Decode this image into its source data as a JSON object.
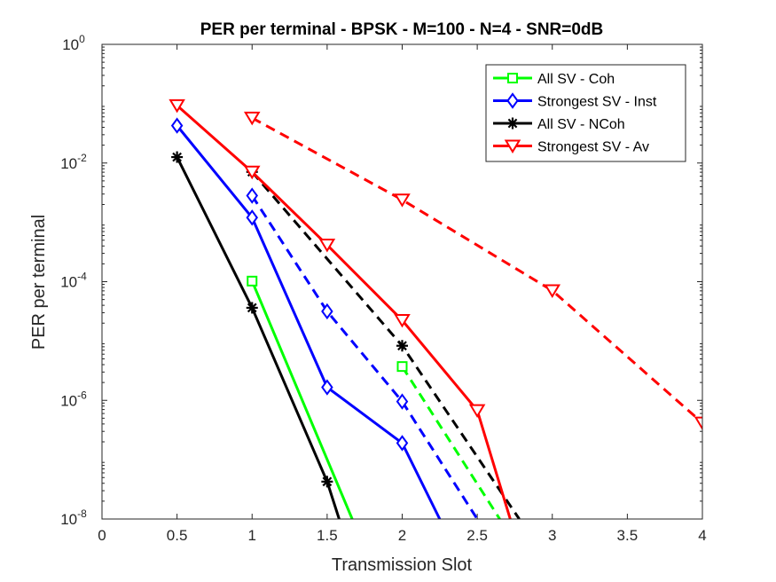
{
  "chart_data": {
    "type": "line",
    "title": "PER per terminal - BPSK - M=100 -  N=4 - SNR=0dB",
    "xlabel": "Transmission Slot",
    "ylabel": "PER per terminal",
    "xlim": [
      0,
      4
    ],
    "ylim_log10": [
      -8,
      0
    ],
    "yscale": "log",
    "x_ticks": [
      0,
      0.5,
      1,
      1.5,
      2,
      2.5,
      3,
      3.5,
      4
    ],
    "x_tick_labels": [
      "0",
      "0.5",
      "1",
      "1.5",
      "2",
      "2.5",
      "3",
      "3.5",
      "4"
    ],
    "y_ticks_log10": [
      -8,
      -6,
      -4,
      -2,
      0
    ],
    "y_tick_base": "10",
    "y_tick_exponents": [
      "-8",
      "-6",
      "-4",
      "-2",
      "0"
    ],
    "legend_location": "top-right",
    "series": [
      {
        "name": "All SV - Coh",
        "color": "#00ff00",
        "marker": "square",
        "style": "solid",
        "x": [
          1,
          1.667
        ],
        "y_log10": [
          -3.99,
          -8
        ]
      },
      {
        "name": "All SV - Coh",
        "color": "#00ff00",
        "marker": "square",
        "style": "dashed",
        "in_legend": false,
        "x": [
          2,
          2.65
        ],
        "y_log10": [
          -5.43,
          -8
        ]
      },
      {
        "name": "Strongest SV - Inst",
        "color": "#0000ff",
        "marker": "diamond",
        "style": "solid",
        "x": [
          0.5,
          1,
          1.5,
          2,
          2.25
        ],
        "y_log10": [
          -1.37,
          -2.92,
          -5.78,
          -6.72,
          -8
        ]
      },
      {
        "name": "Strongest SV - Inst",
        "color": "#0000ff",
        "marker": "diamond",
        "style": "dashed",
        "in_legend": false,
        "x": [
          1,
          1.5,
          2,
          2.5
        ],
        "y_log10": [
          -2.55,
          -4.5,
          -6.02,
          -8
        ]
      },
      {
        "name": "All SV - NCoh",
        "color": "#000000",
        "marker": "asterisk",
        "style": "solid",
        "x": [
          0.5,
          1,
          1.5,
          1.58
        ],
        "y_log10": [
          -1.9,
          -4.44,
          -7.37,
          -8
        ]
      },
      {
        "name": "All SV - NCoh",
        "color": "#000000",
        "marker": "asterisk",
        "style": "dashed",
        "in_legend": false,
        "x": [
          1,
          2,
          2.78
        ],
        "y_log10": [
          -2.15,
          -5.08,
          -8
        ]
      },
      {
        "name": "Strongest SV - Av",
        "color": "#ff0000",
        "marker": "triangle-down",
        "style": "solid",
        "x": [
          0.5,
          1,
          1.5,
          2,
          2.5,
          2.72
        ],
        "y_log10": [
          -1.03,
          -2.15,
          -3.38,
          -4.65,
          -6.17,
          -8
        ]
      },
      {
        "name": "Strongest SV - Av",
        "color": "#ff0000",
        "marker": "triangle-down",
        "style": "dashed",
        "in_legend": false,
        "x": [
          1,
          2,
          3,
          4
        ],
        "y_log10": [
          -1.24,
          -2.62,
          -4.15,
          -6.38
        ]
      }
    ],
    "legend": [
      {
        "label": "All SV - Coh",
        "color": "#00ff00",
        "marker": "square"
      },
      {
        "label": "Strongest SV - Inst",
        "color": "#0000ff",
        "marker": "diamond"
      },
      {
        "label": "All SV - NCoh",
        "color": "#000000",
        "marker": "asterisk"
      },
      {
        "label": "Strongest SV - Av",
        "color": "#ff0000",
        "marker": "triangle-down"
      }
    ]
  }
}
